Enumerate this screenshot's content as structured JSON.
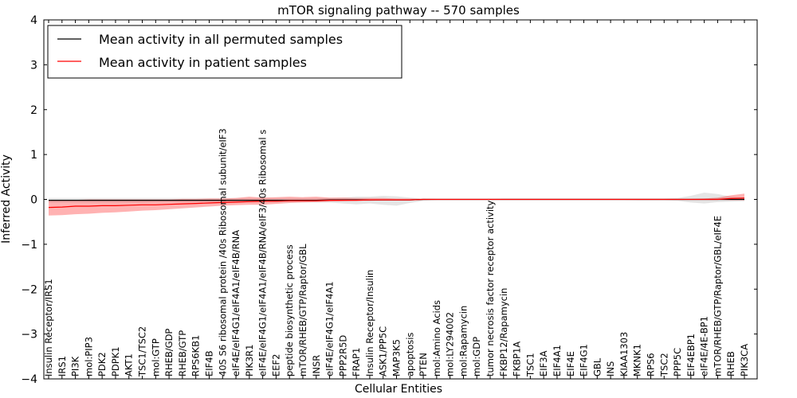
{
  "chart_data": {
    "type": "line",
    "title": "mTOR signaling pathway -- 570 samples",
    "xlabel": "Cellular Entities",
    "ylabel": "Inferred Activity",
    "ylim": [
      -4,
      4
    ],
    "yticks": [
      -4,
      -3,
      -2,
      -1,
      0,
      1,
      2,
      3,
      4
    ],
    "ytick_labels": [
      "−4",
      "−3",
      "−2",
      "−1",
      "0",
      "1",
      "2",
      "3",
      "4"
    ],
    "legend": {
      "position": "top-left",
      "entries": [
        {
          "label": "Mean activity in all permuted samples",
          "color": "#000000"
        },
        {
          "label": "Mean activity in patient samples",
          "color": "#ff0000"
        }
      ]
    },
    "categories": [
      "Insulin Receptor/IRS1",
      "IRS1",
      "PI3K",
      "mol:PIP3",
      "PDK2",
      "PDPK1",
      "AKT1",
      "TSC1/TSC2",
      "mol:GTP",
      "RHEB/GDP",
      "RHEB/GTP",
      "RPS6KB1",
      "EIF4B",
      "40S S6 ribosomal protein /40s Ribosomal subunit/eIF3",
      "eIF4E/eIF4G1/eIF4A1/eIF4B/RNA",
      "PIK3R1",
      "eIF4E/eIF4G1/eIF4A1/eIF4B/RNA/eIF3/40s Ribosomal s",
      "EEF2",
      "peptide biosynthetic process",
      "mTOR/RHEB/GTP/Raptor/GBL",
      "INSR",
      "eIF4E/eIF4G1/eIF4A1",
      "PPP2R5D",
      "FRAP1",
      "Insulin Receptor/Insulin",
      "ASK1/PP5C",
      "MAP3K5",
      "apoptosis",
      "PTEN",
      "mol:Amino Acids",
      "mol:LY294002",
      "mol:Rapamycin",
      "mol:GDP",
      "tumor necrosis factor receptor activity",
      "FKBP12/Rapamycin",
      "FKBP1A",
      "TSC1",
      "EIF3A",
      "EIF4A1",
      "EIF4E",
      "EIF4G1",
      "GBL",
      "INS",
      "KIAA1303",
      "MKNK1",
      "RPS6",
      "TSC2",
      "PPP5C",
      "EIF4EBP1",
      "eIF4E/4E-BP1",
      "mTOR/RHEB/GTP/Raptor/GBL/eIF4E",
      "RHEB",
      "PIK3CA"
    ],
    "series": [
      {
        "name": "Mean activity in all permuted samples",
        "color": "#000000",
        "values": [
          -0.02,
          -0.02,
          -0.02,
          -0.02,
          -0.02,
          -0.02,
          -0.02,
          -0.02,
          -0.02,
          -0.02,
          -0.02,
          -0.02,
          -0.02,
          -0.02,
          -0.02,
          -0.02,
          -0.02,
          -0.02,
          -0.02,
          -0.02,
          -0.02,
          -0.01,
          -0.01,
          -0.01,
          -0.01,
          -0.01,
          -0.01,
          -0.01,
          0,
          0,
          0,
          0,
          0,
          0,
          0,
          0,
          0,
          0,
          0,
          0,
          0,
          0,
          0,
          0,
          0,
          0,
          0,
          0,
          0,
          0,
          0,
          0,
          0
        ],
        "band_low": [
          -0.07,
          -0.07,
          -0.07,
          -0.07,
          -0.07,
          -0.07,
          -0.07,
          -0.07,
          -0.06,
          -0.06,
          -0.06,
          -0.06,
          -0.06,
          -0.06,
          -0.06,
          -0.06,
          -0.06,
          -0.06,
          -0.06,
          -0.06,
          -0.07,
          -0.07,
          -0.09,
          -0.11,
          -0.09,
          -0.12,
          -0.14,
          -0.08,
          -0.03,
          -0.01,
          -0.01,
          -0.01,
          -0.01,
          -0.01,
          -0.01,
          -0.01,
          -0.01,
          -0.01,
          -0.01,
          -0.01,
          -0.01,
          -0.01,
          -0.01,
          -0.01,
          -0.02,
          -0.02,
          -0.02,
          -0.03,
          -0.07,
          -0.09,
          -0.06,
          -0.05,
          -0.04
        ],
        "band_high": [
          0.03,
          0.03,
          0.03,
          0.03,
          0.03,
          0.03,
          0.03,
          0.03,
          0.03,
          0.03,
          0.03,
          0.03,
          0.03,
          0.03,
          0.03,
          0.03,
          0.03,
          0.03,
          0.03,
          0.03,
          0.03,
          0.03,
          0.04,
          0.06,
          0.06,
          0.08,
          0.07,
          0.04,
          0.02,
          0.01,
          0.01,
          0.01,
          0.01,
          0.01,
          0.02,
          0.02,
          0.02,
          0.02,
          0.02,
          0.02,
          0.02,
          0.02,
          0.02,
          0.02,
          0.02,
          0.02,
          0.02,
          0.03,
          0.08,
          0.15,
          0.12,
          0.06,
          0.04
        ]
      },
      {
        "name": "Mean activity in patient samples",
        "color": "#ff0000",
        "values": [
          -0.18,
          -0.17,
          -0.15,
          -0.15,
          -0.14,
          -0.14,
          -0.13,
          -0.12,
          -0.12,
          -0.11,
          -0.1,
          -0.09,
          -0.08,
          -0.07,
          -0.06,
          -0.05,
          -0.04,
          -0.04,
          -0.03,
          -0.03,
          -0.03,
          -0.02,
          -0.02,
          -0.02,
          -0.01,
          -0.01,
          -0.01,
          -0.01,
          0,
          0,
          0,
          0,
          0,
          0,
          0,
          0,
          0,
          0,
          0,
          0,
          0,
          0,
          0,
          0,
          0,
          0,
          0,
          0,
          0,
          0,
          0,
          0.02,
          0.03
        ],
        "band_low": [
          -0.36,
          -0.35,
          -0.33,
          -0.32,
          -0.3,
          -0.29,
          -0.27,
          -0.25,
          -0.24,
          -0.22,
          -0.2,
          -0.18,
          -0.16,
          -0.14,
          -0.13,
          -0.12,
          -0.12,
          -0.1,
          -0.08,
          -0.07,
          -0.06,
          -0.05,
          -0.04,
          -0.03,
          -0.03,
          -0.02,
          -0.02,
          -0.02,
          -0.01,
          -0.01,
          -0.01,
          -0.01,
          -0.01,
          -0.01,
          -0.01,
          -0.01,
          -0.01,
          -0.01,
          -0.01,
          -0.01,
          -0.01,
          -0.01,
          -0.01,
          -0.01,
          -0.01,
          -0.01,
          -0.01,
          -0.01,
          -0.01,
          -0.01,
          -0.01,
          -0.02,
          -0.02
        ],
        "band_high": [
          -0.01,
          -0.01,
          -0.01,
          0,
          0,
          0,
          0,
          0,
          0,
          0,
          0.01,
          0.01,
          0.02,
          0.02,
          0.03,
          0.06,
          0.04,
          0.05,
          0.06,
          0.05,
          0.06,
          0.04,
          0.04,
          0.03,
          0.03,
          0.03,
          0.02,
          0.02,
          0.01,
          0.01,
          0.01,
          0.01,
          0.01,
          0.01,
          0.01,
          0.01,
          0.01,
          0.01,
          0.01,
          0.01,
          0.01,
          0.01,
          0.01,
          0.01,
          0.01,
          0.01,
          0.01,
          0.01,
          0.01,
          0.02,
          0.04,
          0.09,
          0.13
        ]
      }
    ]
  }
}
